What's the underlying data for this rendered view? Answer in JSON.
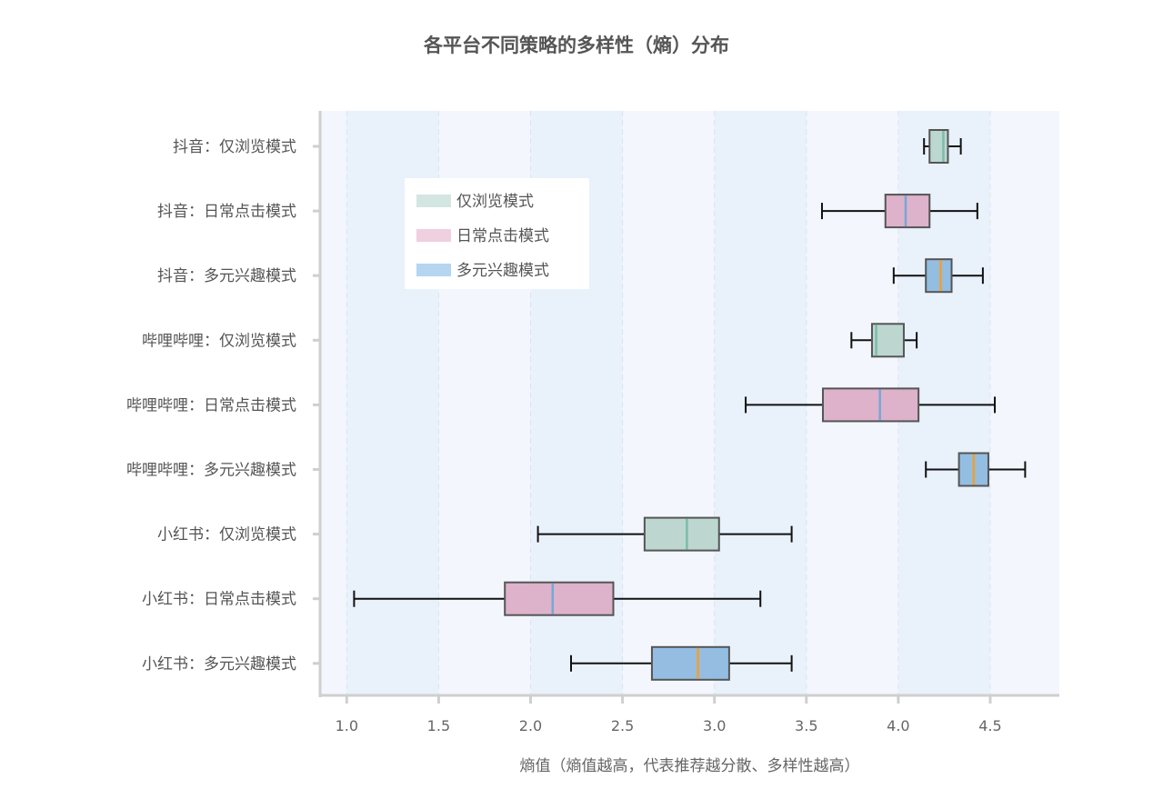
{
  "chart_data": {
    "type": "boxplot",
    "orientation": "horizontal",
    "title": "各平台不同策略的多样性（熵）分布",
    "xlabel": "熵值（熵值越高，代表推荐越分散、多样性越高）",
    "xlim": [
      0.855,
      4.876
    ],
    "xticks": [
      "1.0",
      "1.5",
      "2.0",
      "2.5",
      "3.0",
      "3.5",
      "4.0",
      "4.5"
    ],
    "grid": true,
    "legend": {
      "placement": "upper-left",
      "entries": [
        {
          "label": "仅浏览模式",
          "color": "#d3e6e1"
        },
        {
          "label": "日常点击模式",
          "color": "#efcfe0"
        },
        {
          "label": "多元兴趣模式",
          "color": "#b5d5f1"
        }
      ]
    },
    "styles": {
      "仅浏览模式": {
        "fill": "#b9d5cd",
        "median": "#7dbcaa"
      },
      "日常点击模式": {
        "fill": "#dcaec8",
        "median": "#78a6d8"
      },
      "多元兴趣模式": {
        "fill": "#8fb9e0",
        "median": "#f0a030"
      }
    },
    "boxes": [
      {
        "label": "抖音：仅浏览模式",
        "mode": "仅浏览模式",
        "min": 4.14,
        "q1": 4.17,
        "median": 4.245,
        "q3": 4.27,
        "max": 4.34
      },
      {
        "label": "抖音：日常点击模式",
        "mode": "日常点击模式",
        "min": 3.585,
        "q1": 3.93,
        "median": 4.04,
        "q3": 4.17,
        "max": 4.43
      },
      {
        "label": "抖音：多元兴趣模式",
        "mode": "多元兴趣模式",
        "min": 3.975,
        "q1": 4.15,
        "median": 4.23,
        "q3": 4.29,
        "max": 4.46
      },
      {
        "label": "哔哩哔哩：仅浏览模式",
        "mode": "仅浏览模式",
        "min": 3.745,
        "q1": 3.857,
        "median": 3.88,
        "q3": 4.03,
        "max": 4.1
      },
      {
        "label": "哔哩哔哩：日常点击模式",
        "mode": "日常点击模式",
        "min": 3.17,
        "q1": 3.59,
        "median": 3.9,
        "q3": 4.11,
        "max": 4.525
      },
      {
        "label": "哔哩哔哩：多元兴趣模式",
        "mode": "多元兴趣模式",
        "min": 4.15,
        "q1": 4.33,
        "median": 4.41,
        "q3": 4.49,
        "max": 4.69
      },
      {
        "label": "小红书：仅浏览模式",
        "mode": "仅浏览模式",
        "min": 2.04,
        "q1": 2.62,
        "median": 2.85,
        "q3": 3.025,
        "max": 3.42
      },
      {
        "label": "小红书：日常点击模式",
        "mode": "日常点击模式",
        "min": 1.04,
        "q1": 1.86,
        "median": 2.12,
        "q3": 2.45,
        "max": 3.25
      },
      {
        "label": "小红书：多元兴趣模式",
        "mode": "多元兴趣模式",
        "min": 2.22,
        "q1": 2.66,
        "median": 2.91,
        "q3": 3.08,
        "max": 3.42
      }
    ]
  }
}
